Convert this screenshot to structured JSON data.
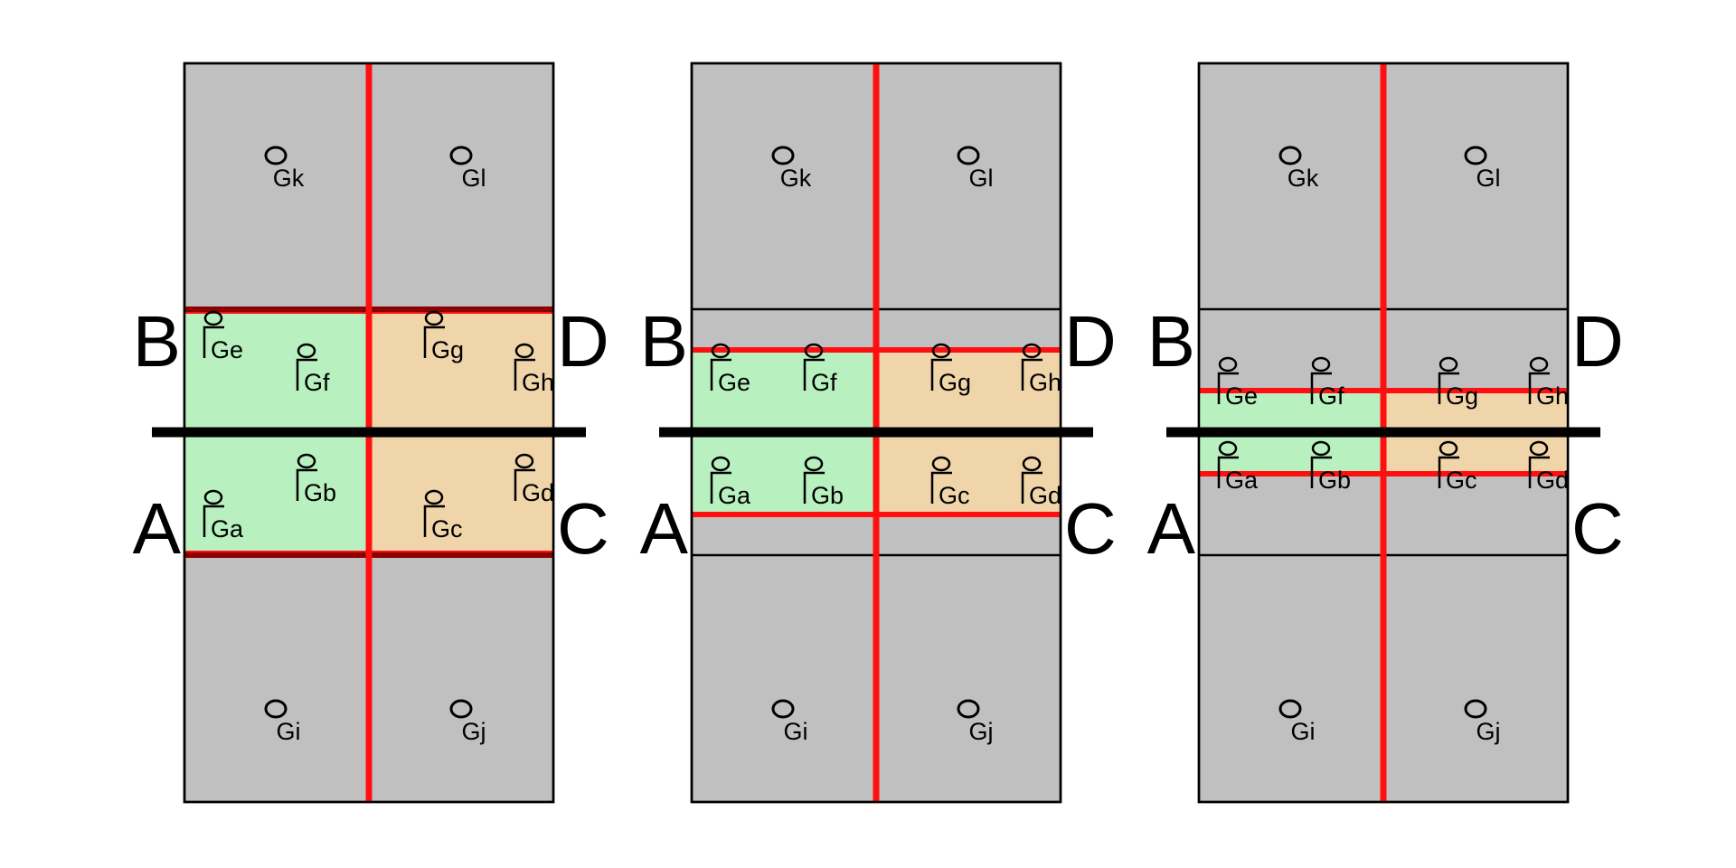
{
  "colors": {
    "gray_cell": "#c0c0c0",
    "green_zone": "#b8f0c0",
    "orange_zone": "#f0d4aa",
    "red_line": "#ff0f0f",
    "dark_red_line": "#8b0000",
    "black_line": "#000000"
  },
  "corners": {
    "a": "A",
    "b": "B",
    "c": "C",
    "d": "D"
  },
  "panels": [
    {
      "id": "panel-1",
      "labels": {
        "gk": "Gk",
        "gl": "Gl",
        "gi": "Gi",
        "gj": "Gj",
        "ge": "Ge",
        "gf": "Gf",
        "gg": "Gg",
        "gh": "Gh",
        "ga": "Ga",
        "gb": "Gb",
        "gc": "Gc",
        "gd": "Gd"
      }
    },
    {
      "id": "panel-2",
      "labels": {
        "gk": "Gk",
        "gl": "Gl",
        "gi": "Gi",
        "gj": "Gj",
        "ge": "Ge",
        "gf": "Gf",
        "gg": "Gg",
        "gh": "Gh",
        "ga": "Ga",
        "gb": "Gb",
        "gc": "Gc",
        "gd": "Gd"
      }
    },
    {
      "id": "panel-3",
      "labels": {
        "gk": "Gk",
        "gl": "Gl",
        "gi": "Gi",
        "gj": "Gj",
        "ge": "Ge",
        "gf": "Gf",
        "gg": "Gg",
        "gh": "Gh",
        "ga": "Ga",
        "gb": "Gb",
        "gc": "Gc",
        "gd": "Gd"
      }
    }
  ]
}
